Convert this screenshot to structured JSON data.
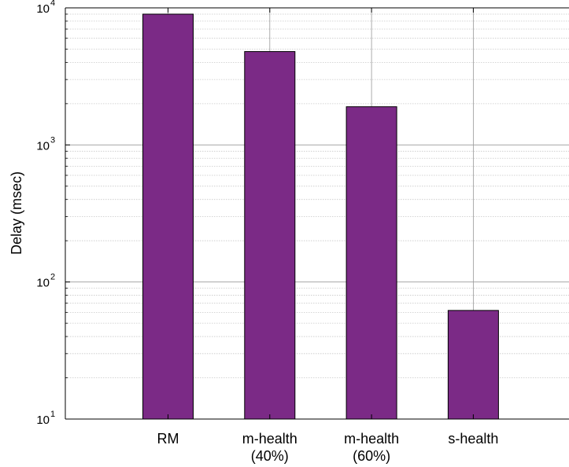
{
  "chart_data": {
    "type": "bar",
    "categories": [
      [
        "RM"
      ],
      [
        "m-health",
        "(40%)"
      ],
      [
        "m-health",
        "(60%)"
      ],
      [
        "s-health"
      ]
    ],
    "values": [
      9000,
      4800,
      1900,
      62
    ],
    "title": "",
    "xlabel": "",
    "ylabel": "Delay (msec)",
    "yscale": "log",
    "ylim": [
      10,
      10000
    ],
    "yticks": [
      {
        "base": "10",
        "exp": "1"
      },
      {
        "base": "10",
        "exp": "2"
      },
      {
        "base": "10",
        "exp": "3"
      },
      {
        "base": "10",
        "exp": "4"
      }
    ],
    "grid": true,
    "bar_color": "#7B2A86",
    "bar_edge_color": "#000000"
  }
}
